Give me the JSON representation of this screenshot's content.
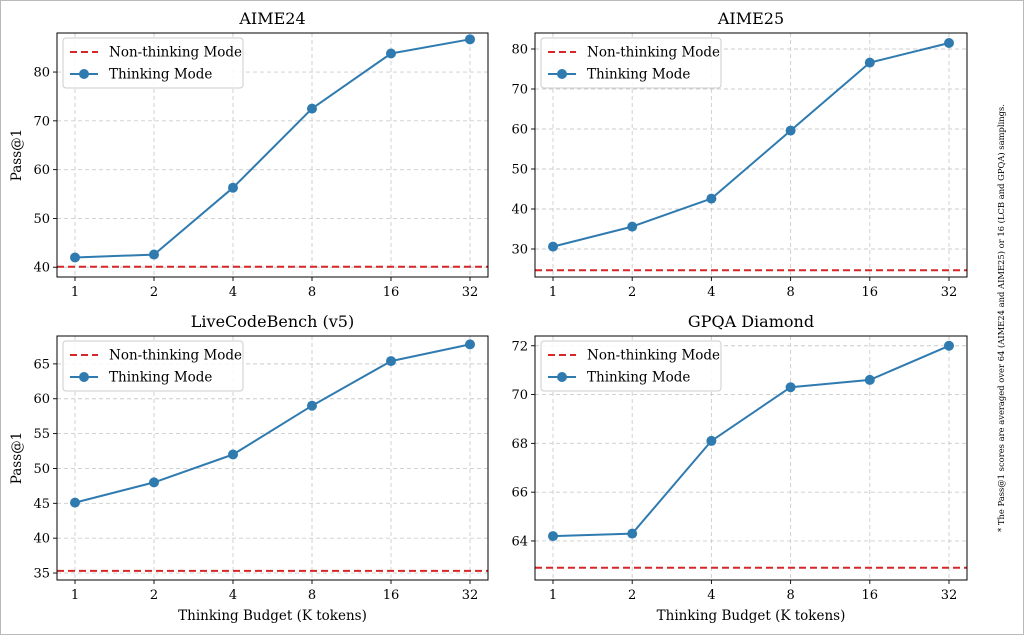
{
  "footnote": "* The Pass@1 scores are averaged over 64 (AIME24 and AIME25) or 16 (LCB and GPQA) samplings.",
  "colors": {
    "thinking": "#2f7bb0",
    "non_thinking": "#d62728",
    "grid": "#cccccc"
  },
  "chart_data": [
    {
      "type": "line",
      "title": "AIME24",
      "xlabel": "",
      "ylabel": "Pass@1",
      "categories": [
        "1",
        "2",
        "4",
        "8",
        "16",
        "32"
      ],
      "ylim": [
        38,
        88
      ],
      "yticks": [
        40,
        50,
        60,
        70,
        80
      ],
      "grid": true,
      "legend_position": "upper-left",
      "series": [
        {
          "name": "Non-thinking Mode",
          "style": "dashed-hline",
          "value": 40.1
        },
        {
          "name": "Thinking Mode",
          "style": "line-marker",
          "values": [
            42.0,
            42.6,
            56.3,
            72.5,
            83.8,
            86.7
          ]
        }
      ]
    },
    {
      "type": "line",
      "title": "AIME25",
      "xlabel": "",
      "ylabel": "",
      "categories": [
        "1",
        "2",
        "4",
        "8",
        "16",
        "32"
      ],
      "ylim": [
        23,
        84
      ],
      "yticks": [
        30,
        40,
        50,
        60,
        70,
        80
      ],
      "grid": true,
      "legend_position": "upper-left",
      "series": [
        {
          "name": "Non-thinking Mode",
          "style": "dashed-hline",
          "value": 24.7
        },
        {
          "name": "Thinking Mode",
          "style": "line-marker",
          "values": [
            30.6,
            35.6,
            42.6,
            59.6,
            76.6,
            81.5
          ]
        }
      ]
    },
    {
      "type": "line",
      "title": "LiveCodeBench (v5)",
      "xlabel": "Thinking Budget (K tokens)",
      "ylabel": "Pass@1",
      "categories": [
        "1",
        "2",
        "4",
        "8",
        "16",
        "32"
      ],
      "ylim": [
        34,
        69
      ],
      "yticks": [
        35,
        40,
        45,
        50,
        55,
        60,
        65
      ],
      "grid": true,
      "legend_position": "upper-left",
      "series": [
        {
          "name": "Non-thinking Mode",
          "style": "dashed-hline",
          "value": 35.3
        },
        {
          "name": "Thinking Mode",
          "style": "line-marker",
          "values": [
            45.1,
            48.0,
            52.0,
            59.0,
            65.4,
            67.8
          ]
        }
      ]
    },
    {
      "type": "line",
      "title": "GPQA Diamond",
      "xlabel": "Thinking Budget (K tokens)",
      "ylabel": "",
      "categories": [
        "1",
        "2",
        "4",
        "8",
        "16",
        "32"
      ],
      "ylim": [
        62.4,
        72.4
      ],
      "yticks": [
        64,
        66,
        68,
        70,
        72
      ],
      "grid": true,
      "legend_position": "upper-left",
      "series": [
        {
          "name": "Non-thinking Mode",
          "style": "dashed-hline",
          "value": 62.9
        },
        {
          "name": "Thinking Mode",
          "style": "line-marker",
          "values": [
            64.2,
            64.3,
            68.1,
            70.3,
            70.6,
            72.0
          ]
        }
      ]
    }
  ]
}
